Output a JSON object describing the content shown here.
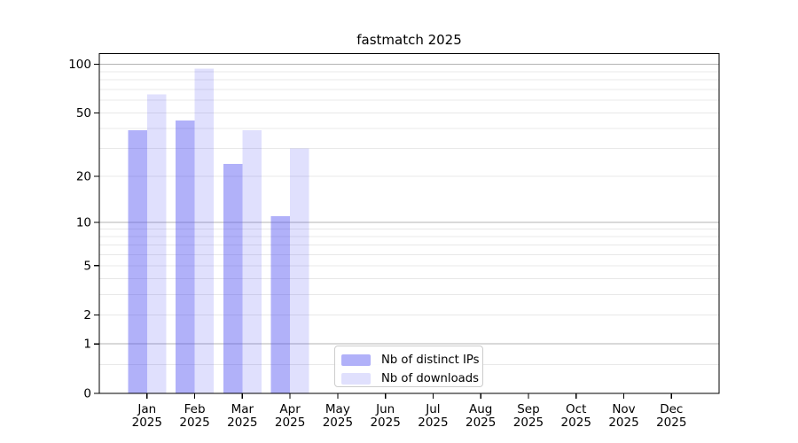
{
  "chart_data": {
    "type": "bar",
    "title": "fastmatch 2025",
    "categories": [
      "Jan",
      "Feb",
      "Mar",
      "Apr",
      "May",
      "Jun",
      "Jul",
      "Aug",
      "Sep",
      "Oct",
      "Nov",
      "Dec"
    ],
    "category_year": "2025",
    "series": [
      {
        "name": "Nb of distinct IPs",
        "color": "rgba(82,82,242,0.45)",
        "values": [
          39,
          45,
          24,
          11,
          null,
          null,
          null,
          null,
          null,
          null,
          null,
          null
        ]
      },
      {
        "name": "Nb of downloads",
        "color": "rgba(82,82,242,0.18)",
        "values": [
          65,
          94,
          39,
          30,
          null,
          null,
          null,
          null,
          null,
          null,
          null,
          null
        ]
      }
    ],
    "yscale": "log1p",
    "ylim": [
      0,
      115
    ],
    "yticks": [
      0,
      1,
      2,
      5,
      10,
      20,
      50,
      100
    ],
    "ytick_labels": [
      "0",
      "1",
      "2",
      "5",
      "10",
      "20",
      "50",
      "100"
    ],
    "major_gridlines": [
      1,
      10,
      100
    ],
    "minor_gridlines": [
      0.5,
      2,
      3,
      4,
      5,
      6,
      7,
      8,
      9,
      20,
      30,
      40,
      50,
      60,
      70,
      80,
      90
    ],
    "grid": "horizontal",
    "legend_position": "lower-center",
    "colors": {
      "major_grid": "#b3b3b3",
      "minor_grid": "#e8e8e8",
      "axis": "#000000",
      "text": "#000000",
      "background": "#ffffff"
    }
  }
}
